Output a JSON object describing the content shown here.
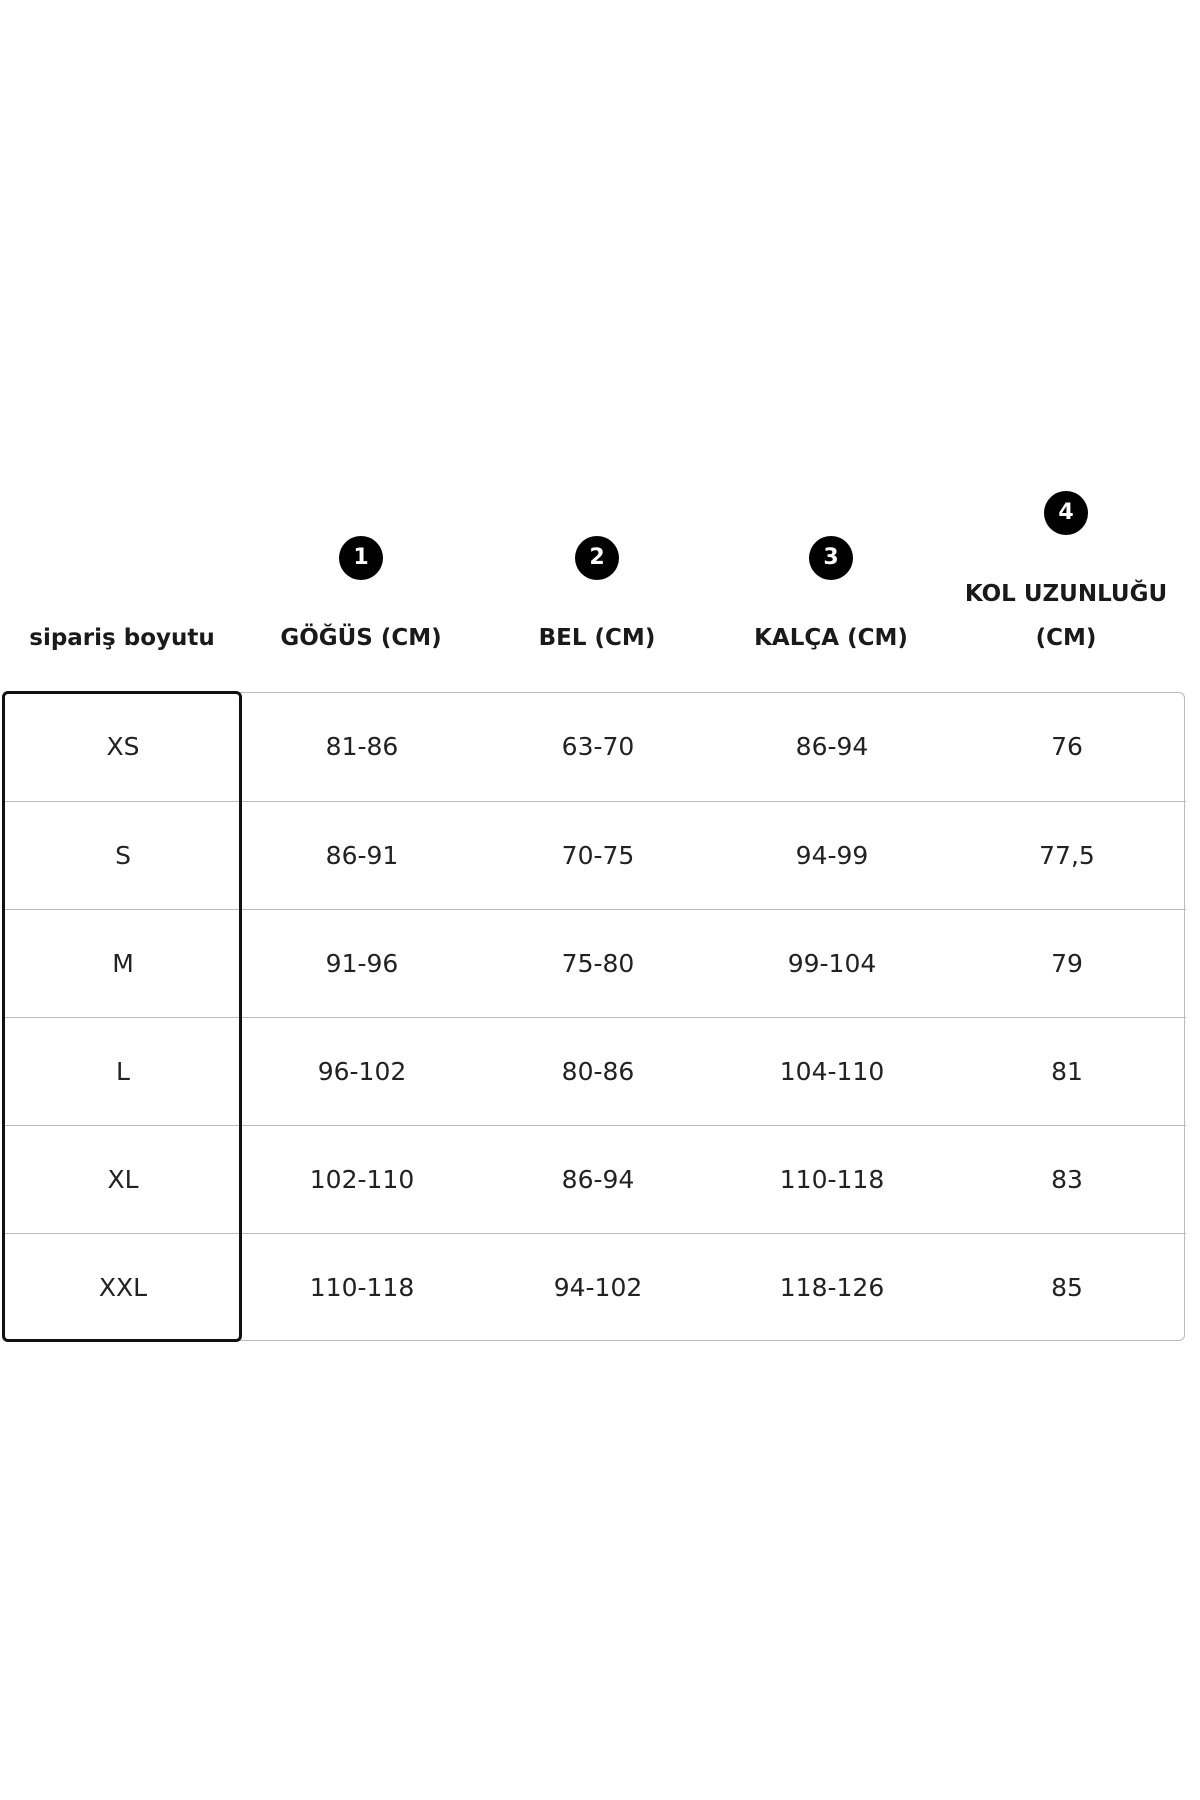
{
  "headers": [
    {
      "label": "sipariş boyutu",
      "number": ""
    },
    {
      "label": "GÖĞÜS (CM)",
      "number": "1"
    },
    {
      "label": "BEL (CM)",
      "number": "2"
    },
    {
      "label": "KALÇA (CM)",
      "number": "3"
    },
    {
      "label_line1": "KOL UZUNLUĞU",
      "label_line2": "(CM)",
      "number": "4"
    }
  ],
  "rows": [
    [
      "XS",
      "81-86",
      "63-70",
      "86-94",
      "76"
    ],
    [
      "S",
      "86-91",
      "70-75",
      "94-99",
      "77,5"
    ],
    [
      "M",
      "91-96",
      "75-80",
      "99-104",
      "79"
    ],
    [
      "L",
      "96-102",
      "80-86",
      "104-110",
      "81"
    ],
    [
      "XL",
      "102-110",
      "86-94",
      "110-118",
      "83"
    ],
    [
      "XXL",
      "110-118",
      "94-102",
      "118-126",
      "85"
    ]
  ]
}
